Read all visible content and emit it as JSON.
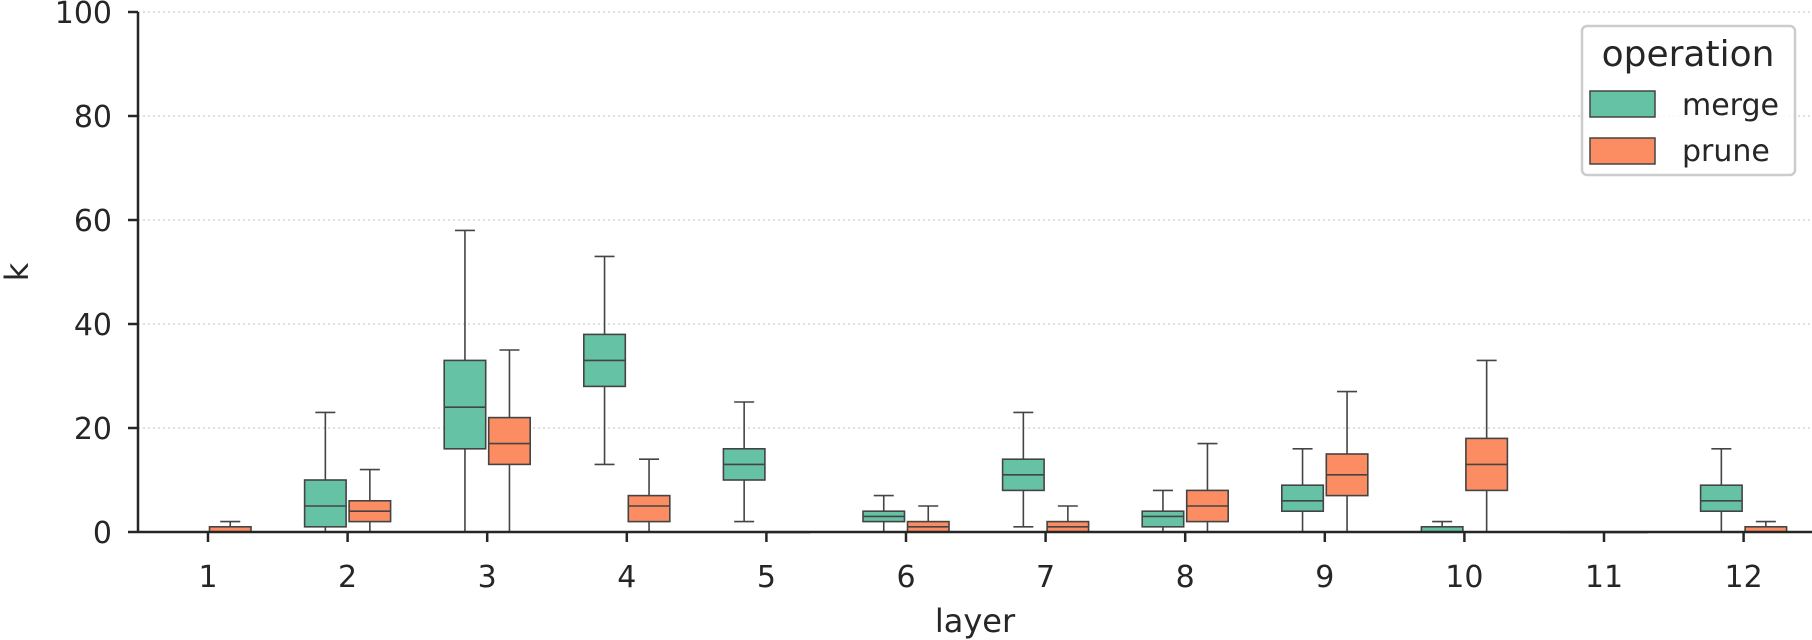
{
  "chart_data": {
    "type": "box",
    "xlabel": "layer",
    "ylabel": "k",
    "ylim": [
      0,
      100
    ],
    "yticks": [
      0,
      20,
      40,
      60,
      80,
      100
    ],
    "categories": [
      "1",
      "2",
      "3",
      "4",
      "5",
      "6",
      "7",
      "8",
      "9",
      "10",
      "11",
      "12"
    ],
    "grid": "y-dotted",
    "legend": {
      "title": "operation",
      "position": "top-right",
      "entries": [
        "merge",
        "prune"
      ]
    },
    "colors": {
      "merge": "#66c2a5",
      "prune": "#fc8d62",
      "line": "#444444"
    },
    "series": [
      {
        "name": "merge",
        "stats": [
          null,
          {
            "whislo": 0,
            "q1": 1,
            "med": 5,
            "q3": 10,
            "whishi": 23
          },
          {
            "whislo": 0,
            "q1": 16,
            "med": 24,
            "q3": 33,
            "whishi": 58
          },
          {
            "whislo": 13,
            "q1": 28,
            "med": 33,
            "q3": 38,
            "whishi": 53
          },
          {
            "whislo": 2,
            "q1": 10,
            "med": 13,
            "q3": 16,
            "whishi": 25
          },
          {
            "whislo": 0,
            "q1": 2,
            "med": 3,
            "q3": 4,
            "whishi": 7
          },
          {
            "whislo": 1,
            "q1": 8,
            "med": 11,
            "q3": 14,
            "whishi": 23
          },
          {
            "whislo": 0,
            "q1": 1,
            "med": 3,
            "q3": 4,
            "whishi": 8
          },
          {
            "whislo": 0,
            "q1": 4,
            "med": 6,
            "q3": 9,
            "whishi": 16
          },
          {
            "whislo": 0,
            "q1": 0,
            "med": 0,
            "q3": 1,
            "whishi": 2
          },
          {
            "whislo": 0,
            "q1": 0,
            "med": 0,
            "q3": 0,
            "whishi": 0
          },
          {
            "whislo": 0,
            "q1": 4,
            "med": 6,
            "q3": 9,
            "whishi": 16
          }
        ]
      },
      {
        "name": "prune",
        "stats": [
          {
            "whislo": 0,
            "q1": 0,
            "med": 0,
            "q3": 1,
            "whishi": 2
          },
          {
            "whislo": 0,
            "q1": 2,
            "med": 4,
            "q3": 6,
            "whishi": 12
          },
          {
            "whislo": 0,
            "q1": 13,
            "med": 17,
            "q3": 22,
            "whishi": 35
          },
          {
            "whislo": 0,
            "q1": 2,
            "med": 5,
            "q3": 7,
            "whishi": 14
          },
          {
            "whislo": 0,
            "q1": 0,
            "med": 0,
            "q3": 0,
            "whishi": 0
          },
          {
            "whislo": 0,
            "q1": 0,
            "med": 1,
            "q3": 2,
            "whishi": 5
          },
          {
            "whislo": 0,
            "q1": 0,
            "med": 1,
            "q3": 2,
            "whishi": 5
          },
          {
            "whislo": 0,
            "q1": 2,
            "med": 5,
            "q3": 8,
            "whishi": 17
          },
          {
            "whislo": 0,
            "q1": 7,
            "med": 11,
            "q3": 15,
            "whishi": 27
          },
          {
            "whislo": 0,
            "q1": 8,
            "med": 13,
            "q3": 18,
            "whishi": 33
          },
          {
            "whislo": 0,
            "q1": 0,
            "med": 0,
            "q3": 0,
            "whishi": 0
          },
          {
            "whislo": 0,
            "q1": 0,
            "med": 0,
            "q3": 1,
            "whishi": 2
          }
        ]
      }
    ]
  }
}
